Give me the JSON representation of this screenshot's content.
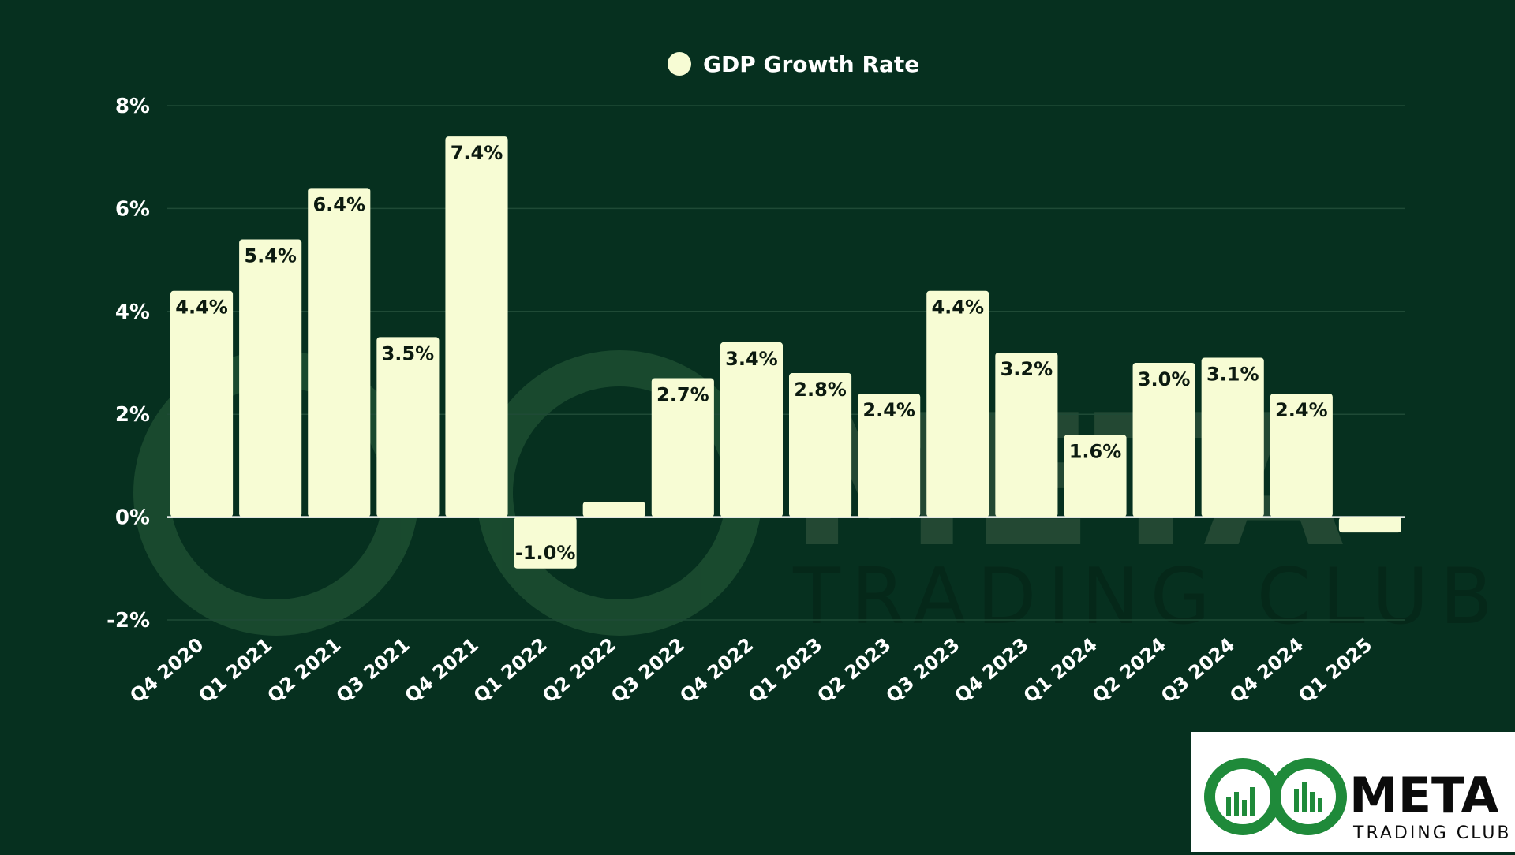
{
  "legend": {
    "label": "GDP Growth Rate",
    "marker_color": "#f7fcd4",
    "position": "top-center"
  },
  "colors": {
    "background": "#06301f",
    "bar": "#f7fcd4",
    "bar_label": "#0c1a10",
    "axis_text": "#ffffff",
    "grid": "#1f4a36",
    "logo_green": "#1f8a3a",
    "logo_dark": "#0b0b0b"
  },
  "logo": {
    "brand": "META",
    "tagline": "TRADING CLUB"
  },
  "chart_data": {
    "type": "bar",
    "categories": [
      "Q4 2020",
      "Q1 2021",
      "Q2 2021",
      "Q3 2021",
      "Q4 2021",
      "Q1 2022",
      "Q2 2022",
      "Q3 2022",
      "Q4 2022",
      "Q1 2023",
      "Q2 2023",
      "Q3 2023",
      "Q4 2023",
      "Q1 2024",
      "Q2 2024",
      "Q3 2024",
      "Q4 2024",
      "Q1 2025"
    ],
    "series": [
      {
        "name": "GDP Growth Rate",
        "values": [
          4.4,
          5.4,
          6.4,
          3.5,
          7.4,
          -1.0,
          0.3,
          2.7,
          3.4,
          2.8,
          2.4,
          4.4,
          3.2,
          1.6,
          3.0,
          3.1,
          2.4,
          -0.3
        ],
        "data_labels": [
          "4.4%",
          "5.4%",
          "6.4%",
          "3.5%",
          "7.4%",
          "-1.0%",
          "",
          "2.7%",
          "3.4%",
          "2.8%",
          "2.4%",
          "4.4%",
          "3.2%",
          "1.6%",
          "3.0%",
          "3.1%",
          "2.4%",
          ""
        ]
      }
    ],
    "yticks": [
      8,
      6,
      4,
      2,
      0,
      -2
    ],
    "ytick_labels": [
      "8%",
      "6%",
      "4%",
      "2%",
      "0%",
      "-2%"
    ],
    "ylim": [
      -2,
      8
    ],
    "grid": true,
    "title": "",
    "xlabel": "",
    "ylabel": ""
  }
}
